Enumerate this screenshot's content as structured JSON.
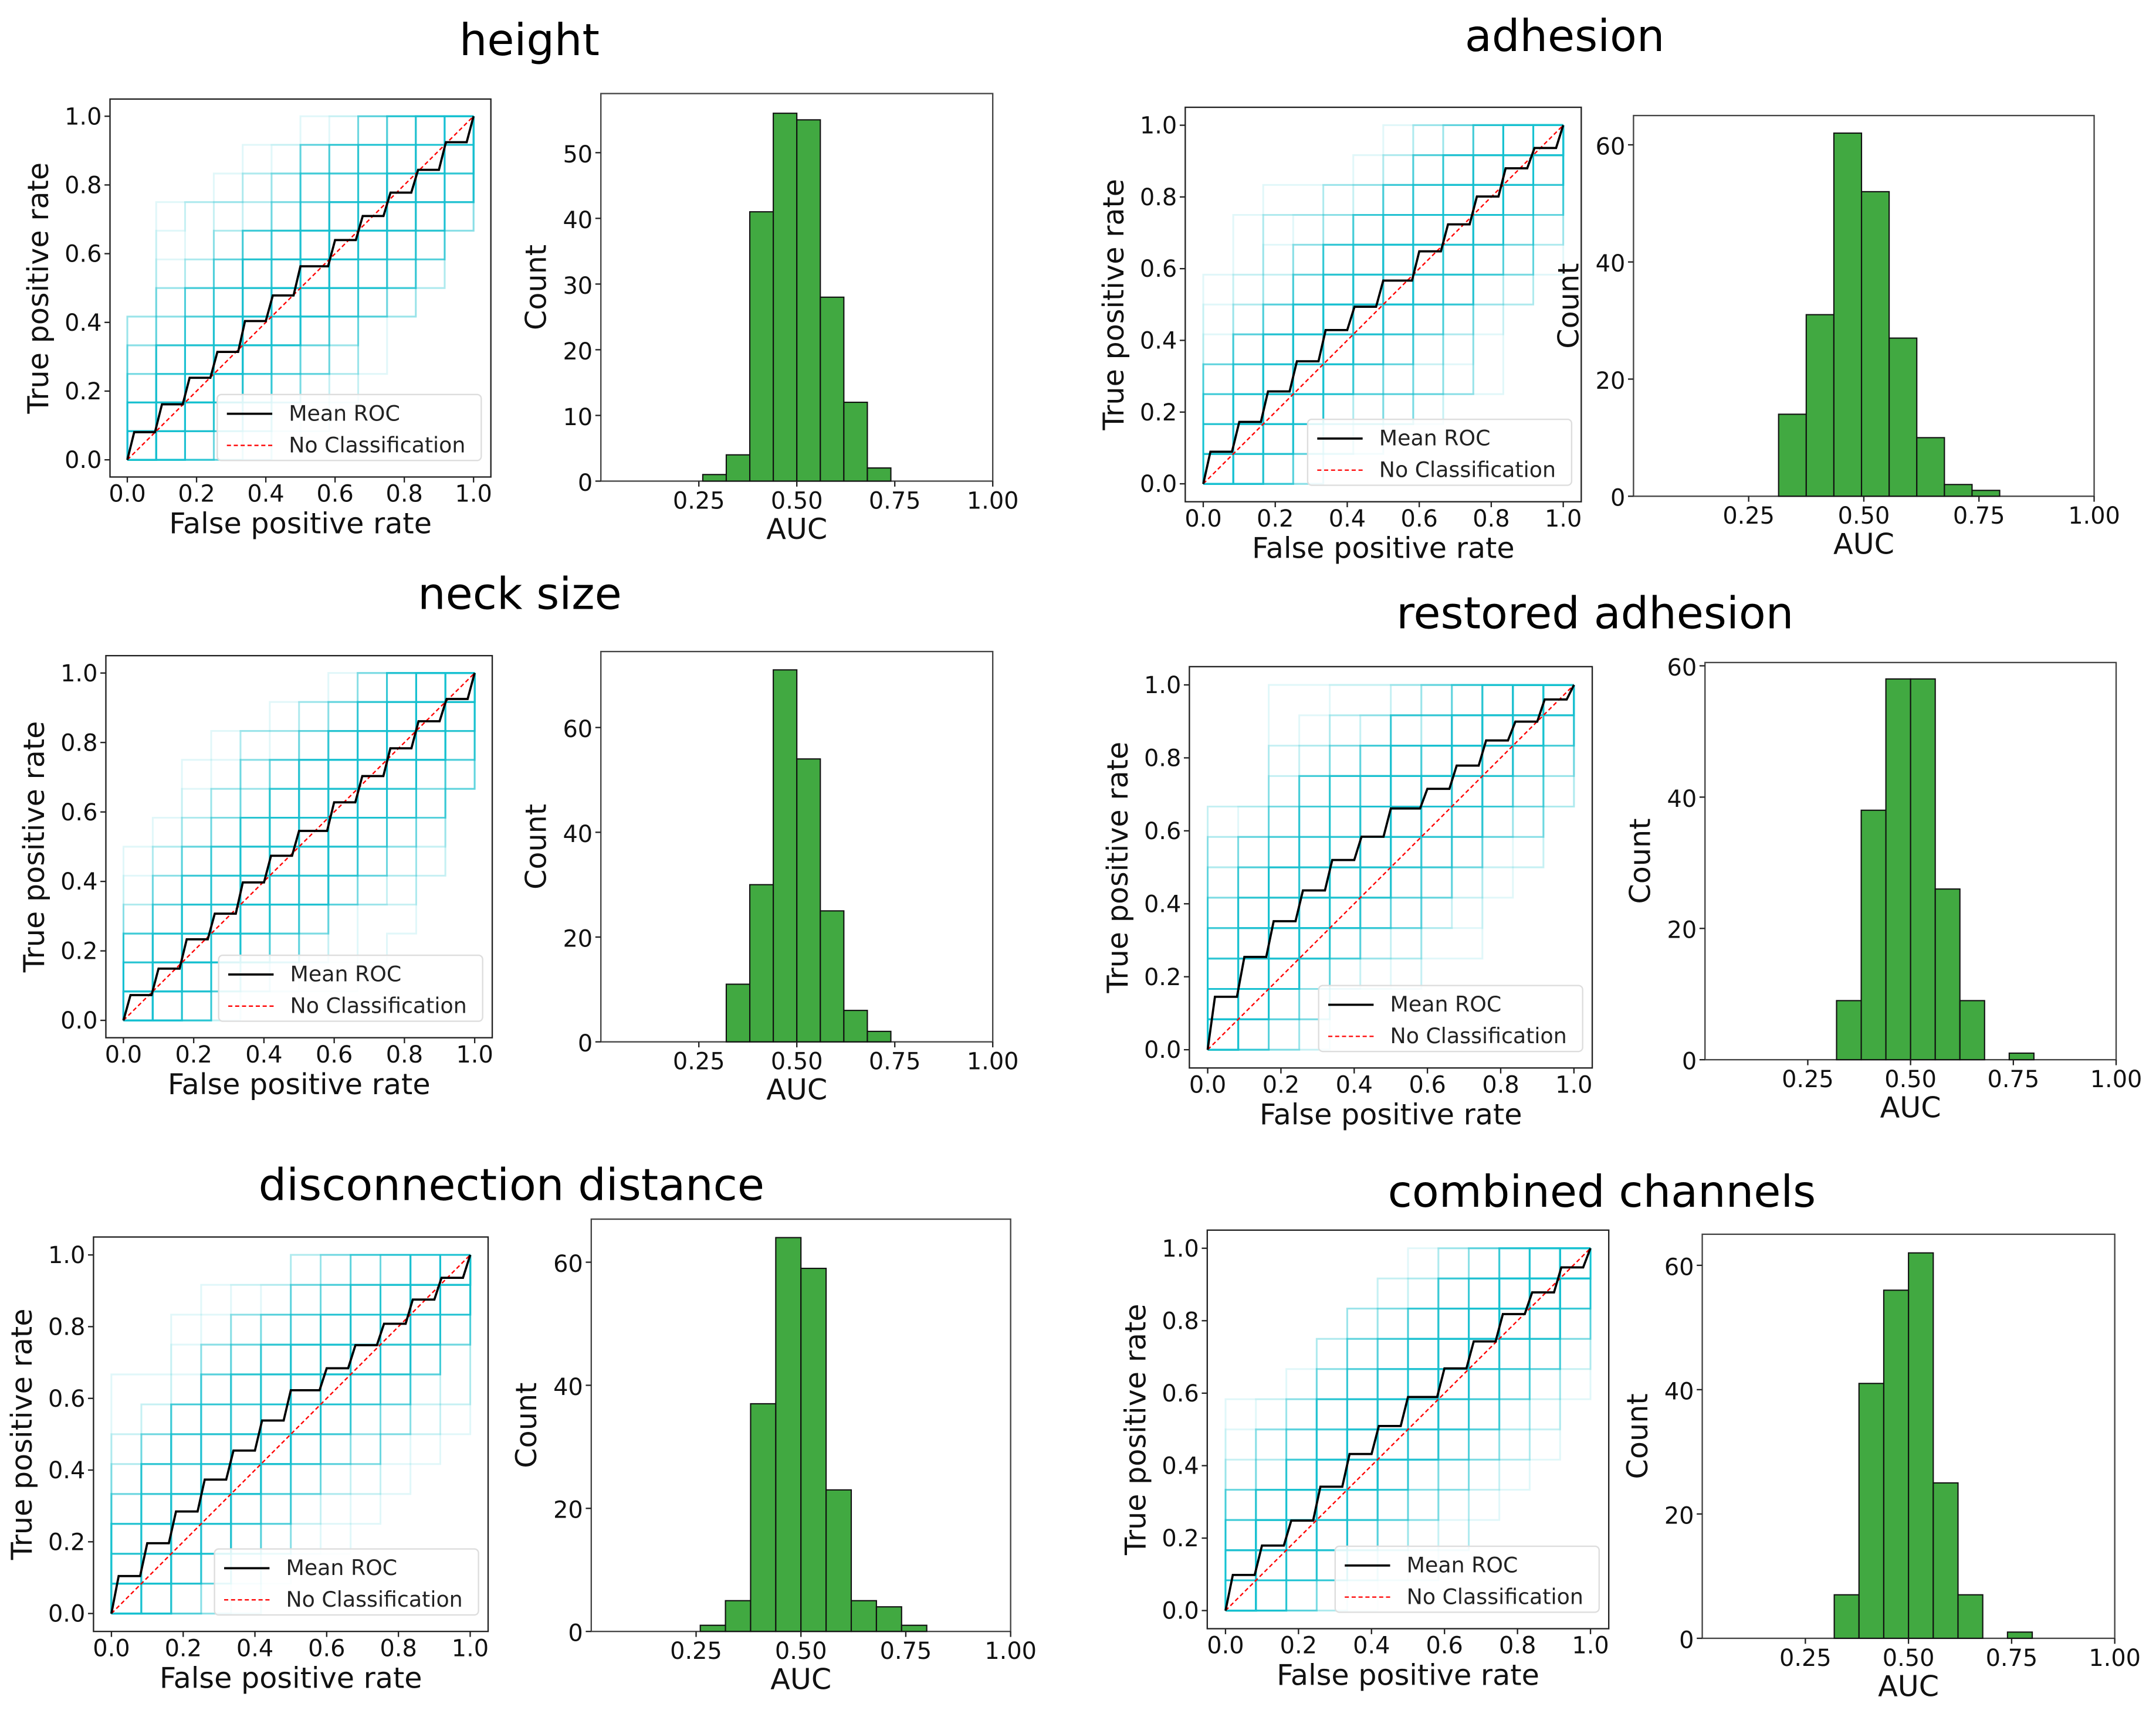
{
  "colors": {
    "roc_curves": "#17becf",
    "mean_roc": "#000000",
    "no_classification": "#ff0000",
    "histogram": "#2ca02c"
  },
  "chart_data": [
    {
      "title": "height",
      "roc": {
        "type": "line",
        "xlabel": "False positive rate",
        "ylabel": "True positive rate",
        "xlim": [
          -0.05,
          1.05
        ],
        "ylim": [
          -0.05,
          1.05
        ],
        "xticks": [
          "0.0",
          "0.2",
          "0.4",
          "0.6",
          "0.8",
          "1.0"
        ],
        "yticks": [
          "0.0",
          "0.2",
          "0.4",
          "0.6",
          "0.8",
          "1.0"
        ],
        "legend": [
          "Mean ROC",
          "No Classification"
        ],
        "legend_position": "lower-right"
      },
      "hist": {
        "type": "bar",
        "xlabel": "AUC",
        "ylabel": "Count",
        "xlim": [
          0,
          1
        ],
        "ylim": [
          0,
          59
        ],
        "xticks": [
          "0.25",
          "0.50",
          "0.75",
          "1.00"
        ],
        "yticks": [
          "0",
          "10",
          "20",
          "30",
          "40",
          "50"
        ],
        "bin_start": 0.26,
        "bin_width": 0.06,
        "counts": [
          1,
          4,
          41,
          56,
          55,
          28,
          12,
          2
        ]
      }
    },
    {
      "title": "adhesion",
      "roc": {
        "type": "line",
        "xlabel": "False positive rate",
        "ylabel": "True positive rate",
        "xlim": [
          -0.05,
          1.05
        ],
        "ylim": [
          -0.05,
          1.05
        ],
        "xticks": [
          "0.0",
          "0.2",
          "0.4",
          "0.6",
          "0.8",
          "1.0"
        ],
        "yticks": [
          "0.0",
          "0.2",
          "0.4",
          "0.6",
          "0.8",
          "1.0"
        ],
        "legend": [
          "Mean ROC",
          "No Classification"
        ],
        "legend_position": "lower-right"
      },
      "hist": {
        "type": "bar",
        "xlabel": "AUC",
        "ylabel": "Count",
        "xlim": [
          0,
          1
        ],
        "ylim": [
          0,
          65
        ],
        "xticks": [
          "0.25",
          "0.50",
          "0.75",
          "1.00"
        ],
        "yticks": [
          "0",
          "20",
          "40",
          "60"
        ],
        "bin_start": 0.315,
        "bin_width": 0.06,
        "counts": [
          14,
          31,
          62,
          52,
          27,
          10,
          2,
          1
        ]
      }
    },
    {
      "title": "neck size",
      "roc": {
        "type": "line",
        "xlabel": "False positive rate",
        "ylabel": "True positive rate",
        "xlim": [
          -0.05,
          1.05
        ],
        "ylim": [
          -0.05,
          1.05
        ],
        "xticks": [
          "0.0",
          "0.2",
          "0.4",
          "0.6",
          "0.8",
          "1.0"
        ],
        "yticks": [
          "0.0",
          "0.2",
          "0.4",
          "0.6",
          "0.8",
          "1.0"
        ],
        "legend": [
          "Mean ROC",
          "No Classification"
        ],
        "legend_position": "lower-right"
      },
      "hist": {
        "type": "bar",
        "xlabel": "AUC",
        "ylabel": "Count",
        "xlim": [
          0,
          1
        ],
        "ylim": [
          0,
          74.5
        ],
        "xticks": [
          "0.25",
          "0.50",
          "0.75",
          "1.00"
        ],
        "yticks": [
          "0",
          "20",
          "40",
          "60"
        ],
        "bin_start": 0.32,
        "bin_width": 0.06,
        "counts": [
          11,
          30,
          71,
          54,
          25,
          6,
          2
        ]
      }
    },
    {
      "title": "restored adhesion",
      "roc": {
        "type": "line",
        "xlabel": "False positive rate",
        "ylabel": "True positive rate",
        "xlim": [
          -0.05,
          1.05
        ],
        "ylim": [
          -0.05,
          1.05
        ],
        "xticks": [
          "0.0",
          "0.2",
          "0.4",
          "0.6",
          "0.8",
          "1.0"
        ],
        "yticks": [
          "0.0",
          "0.2",
          "0.4",
          "0.6",
          "0.8",
          "1.0"
        ],
        "legend": [
          "Mean ROC",
          "No Classification"
        ],
        "legend_position": "lower-right"
      },
      "hist": {
        "type": "bar",
        "xlabel": "AUC",
        "ylabel": "Count",
        "xlim": [
          0,
          1
        ],
        "ylim": [
          0,
          60.5
        ],
        "xticks": [
          "0.25",
          "0.50",
          "0.75",
          "1.00"
        ],
        "yticks": [
          "0",
          "20",
          "40",
          "60"
        ],
        "bin_start": 0.32,
        "bin_width": 0.06,
        "counts": [
          9,
          38,
          58,
          58,
          26,
          9,
          0,
          1
        ]
      }
    },
    {
      "title": "disconnection distance",
      "roc": {
        "type": "line",
        "xlabel": "False positive rate",
        "ylabel": "True positive rate",
        "xlim": [
          -0.05,
          1.05
        ],
        "ylim": [
          -0.05,
          1.05
        ],
        "xticks": [
          "0.0",
          "0.2",
          "0.4",
          "0.6",
          "0.8",
          "1.0"
        ],
        "yticks": [
          "0.0",
          "0.2",
          "0.4",
          "0.6",
          "0.8",
          "1.0"
        ],
        "legend": [
          "Mean ROC",
          "No Classification"
        ],
        "legend_position": "lower-right"
      },
      "hist": {
        "type": "bar",
        "xlabel": "AUC",
        "ylabel": "Count",
        "xlim": [
          0,
          1
        ],
        "ylim": [
          0,
          67
        ],
        "xticks": [
          "0.25",
          "0.50",
          "0.75",
          "1.00"
        ],
        "yticks": [
          "0",
          "20",
          "40",
          "60"
        ],
        "bin_start": 0.26,
        "bin_width": 0.06,
        "counts": [
          1,
          5,
          37,
          64,
          59,
          23,
          5,
          4,
          1
        ]
      }
    },
    {
      "title": "combined channels",
      "roc": {
        "type": "line",
        "xlabel": "False positive rate",
        "ylabel": "True positive rate",
        "xlim": [
          -0.05,
          1.05
        ],
        "ylim": [
          -0.05,
          1.05
        ],
        "xticks": [
          "0.0",
          "0.2",
          "0.4",
          "0.6",
          "0.8",
          "1.0"
        ],
        "yticks": [
          "0.0",
          "0.2",
          "0.4",
          "0.6",
          "0.8",
          "1.0"
        ],
        "legend": [
          "Mean ROC",
          "No Classification"
        ],
        "legend_position": "lower-right"
      },
      "hist": {
        "type": "bar",
        "xlabel": "AUC",
        "ylabel": "Count",
        "xlim": [
          0,
          1
        ],
        "ylim": [
          0,
          65
        ],
        "xticks": [
          "0.25",
          "0.50",
          "0.75",
          "1.00"
        ],
        "yticks": [
          "0",
          "20",
          "40",
          "60"
        ],
        "bin_start": 0.32,
        "bin_width": 0.06,
        "counts": [
          7,
          41,
          56,
          62,
          25,
          7,
          0,
          1
        ]
      }
    }
  ]
}
